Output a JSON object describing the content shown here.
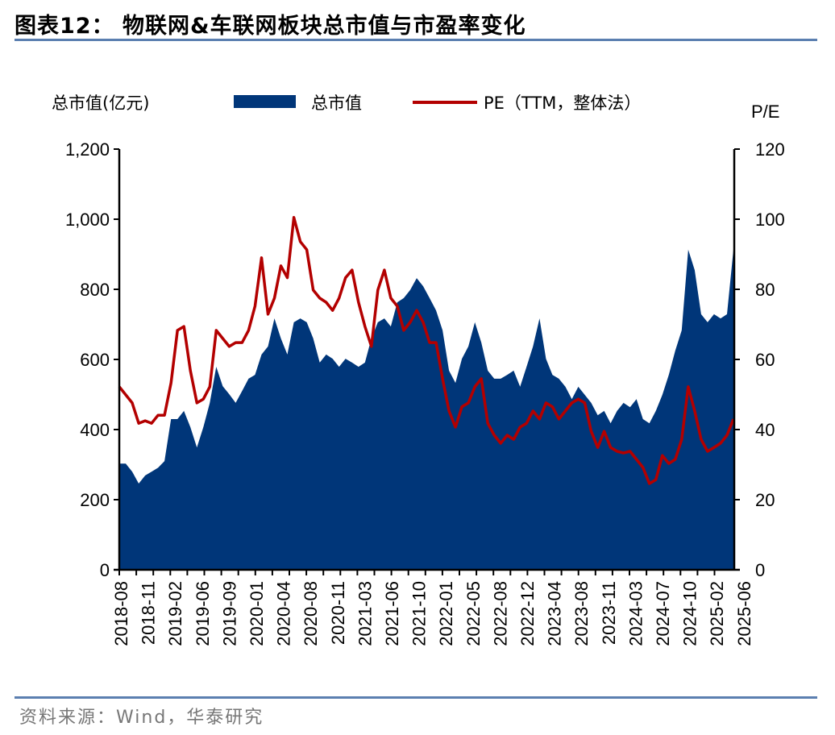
{
  "title": "图表12： 物联网&车联网板块总市值与市盈率变化",
  "source": "资料来源：Wind，华泰研究",
  "colors": {
    "area": "#003679",
    "line": "#b30000",
    "rule": "#5b7fb0"
  },
  "chart_data": {
    "type": "area+line",
    "title": "物联网&车联网板块总市值与市盈率变化",
    "ylabel_left": "总市值(亿元)",
    "ylabel_right": "P/E",
    "ylim_left": [
      0,
      1200
    ],
    "ylim_right": [
      0,
      120
    ],
    "yticks_left": [
      "0",
      "200",
      "400",
      "600",
      "800",
      "1,000",
      "1,200"
    ],
    "yticks_right": [
      "0",
      "20",
      "40",
      "60",
      "80",
      "100",
      "120"
    ],
    "x_start": "2018-08",
    "x_end": "2025-08",
    "x_tick_labels": [
      "2018-08",
      "2018-11",
      "2019-02",
      "2019-06",
      "2019-09",
      "2020-01",
      "2020-04",
      "2020-08",
      "2020-11",
      "2021-03",
      "2021-06",
      "2021-10",
      "2022-01",
      "2022-05",
      "2022-08",
      "2022-12",
      "2023-04",
      "2023-08",
      "2023-11",
      "2024-03",
      "2024-07",
      "2024-10",
      "2025-02",
      "2025-06"
    ],
    "legend": {
      "position": "top",
      "items": [
        "总市值",
        "PE（TTM，整体法）"
      ]
    },
    "series": [
      {
        "name": "总市值",
        "type": "area",
        "axis": "left",
        "values": [
          303,
          303,
          280,
          246,
          269,
          280,
          291,
          310,
          430,
          430,
          453,
          407,
          349,
          407,
          476,
          579,
          524,
          501,
          476,
          510,
          545,
          556,
          614,
          637,
          717,
          660,
          614,
          706,
          717,
          706,
          660,
          591,
          614,
          602,
          579,
          602,
          591,
          579,
          591,
          660,
          706,
          717,
          694,
          763,
          775,
          798,
          832,
          809,
          775,
          740,
          683,
          568,
          533,
          602,
          637,
          706,
          648,
          568,
          545,
          545,
          556,
          568,
          522,
          579,
          637,
          717,
          602,
          556,
          545,
          522,
          487,
          522,
          499,
          476,
          441,
          453,
          418,
          453,
          476,
          464,
          487,
          430,
          418,
          453,
          499,
          556,
          625,
          683,
          913,
          855,
          729,
          706,
          729,
          717,
          729,
          913
        ]
      },
      {
        "name": "PE（TTM，整体法）",
        "type": "line",
        "axis": "right",
        "values": [
          52.2,
          49.9,
          47.6,
          41.8,
          42.5,
          41.8,
          44.1,
          44.1,
          53.3,
          68.3,
          69.4,
          56.8,
          47.6,
          48.7,
          52.2,
          68.3,
          66.0,
          63.7,
          64.8,
          64.8,
          68.3,
          75.2,
          89.0,
          72.9,
          77.5,
          86.7,
          83.3,
          100.5,
          93.6,
          91.3,
          79.8,
          77.5,
          76.3,
          74.0,
          77.5,
          83.3,
          85.5,
          76.3,
          69.4,
          63.7,
          79.8,
          85.5,
          77.5,
          75.2,
          68.3,
          70.6,
          74.0,
          70.6,
          64.8,
          64.8,
          54.5,
          45.3,
          40.7,
          46.5,
          47.6,
          52.2,
          54.5,
          41.8,
          38.4,
          36.1,
          38.4,
          37.2,
          40.7,
          41.8,
          45.3,
          43.0,
          47.6,
          46.5,
          43.0,
          45.3,
          47.6,
          48.7,
          47.6,
          39.5,
          34.9,
          39.5,
          34.9,
          33.8,
          33.3,
          33.8,
          31.5,
          29.2,
          24.6,
          25.7,
          32.6,
          30.3,
          31.5,
          37.2,
          52.2,
          45.3,
          37.2,
          33.8,
          34.9,
          36.1,
          38.4,
          43.0
        ]
      }
    ]
  }
}
